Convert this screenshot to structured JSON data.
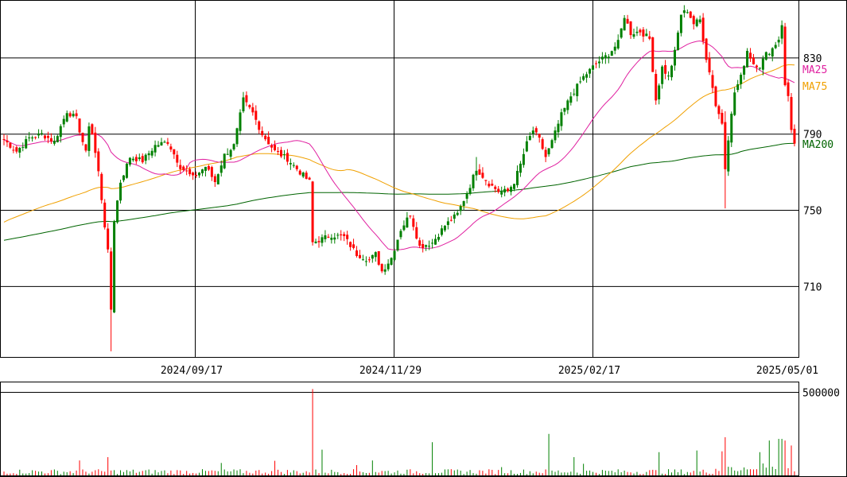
{
  "chart_data": {
    "type": "candlestick",
    "price_axis": {
      "ticks": [
        {
          "value": 830,
          "label": "830"
        },
        {
          "value": 790,
          "label": "790"
        },
        {
          "value": 750,
          "label": "750"
        },
        {
          "value": 710,
          "label": "710"
        }
      ],
      "range": [
        673,
        860
      ]
    },
    "volume_axis": {
      "ticks": [
        {
          "value": 500000,
          "label": "500000"
        }
      ],
      "max": 560000
    },
    "date_labels": [
      {
        "date": "2024/09/17",
        "label": "2024/09/17"
      },
      {
        "date": "2024/11/29",
        "label": "2024/11/29"
      },
      {
        "date": "2025/02/17",
        "label": "2025/02/17"
      },
      {
        "date": "2025/05/01",
        "label": "2025/05/01"
      }
    ],
    "legend": [
      {
        "key": "ma25",
        "label": "MA25",
        "color": "#e020a0",
        "value": 821
      },
      {
        "key": "ma75",
        "label": "MA75",
        "color": "#f0a000",
        "value": 812
      },
      {
        "key": "ma200",
        "label": "MA200",
        "color": "#006400",
        "value": 783
      }
    ],
    "colors": {
      "up": "#008000",
      "down": "#ff0000",
      "ma25": "#e020a0",
      "ma75": "#f0a000",
      "ma200": "#006400",
      "grid": "#000000"
    },
    "anchors": [
      [
        0,
        787
      ],
      [
        4,
        781
      ],
      [
        8,
        788
      ],
      [
        12,
        790
      ],
      [
        16,
        786
      ],
      [
        20,
        802
      ],
      [
        23,
        798
      ],
      [
        26,
        780
      ],
      [
        27,
        795
      ],
      [
        28,
        790
      ],
      [
        30,
        770
      ],
      [
        33,
        728
      ],
      [
        34,
        698
      ],
      [
        35,
        745
      ],
      [
        37,
        765
      ],
      [
        40,
        778
      ],
      [
        44,
        776
      ],
      [
        48,
        784
      ],
      [
        52,
        786
      ],
      [
        56,
        773
      ],
      [
        60,
        767
      ],
      [
        64,
        773
      ],
      [
        67,
        765
      ],
      [
        70,
        779
      ],
      [
        73,
        784
      ],
      [
        76,
        808
      ],
      [
        79,
        801
      ],
      [
        82,
        790
      ],
      [
        86,
        781
      ],
      [
        90,
        777
      ],
      [
        94,
        770
      ],
      [
        97,
        765
      ],
      [
        98,
        733
      ],
      [
        101,
        735
      ],
      [
        104,
        737
      ],
      [
        108,
        736
      ],
      [
        112,
        727
      ],
      [
        116,
        724
      ],
      [
        118,
        727
      ],
      [
        120,
        718
      ],
      [
        123,
        725
      ],
      [
        126,
        740
      ],
      [
        129,
        748
      ],
      [
        132,
        731
      ],
      [
        136,
        733
      ],
      [
        140,
        742
      ],
      [
        144,
        748
      ],
      [
        148,
        763
      ],
      [
        150,
        772
      ],
      [
        154,
        764
      ],
      [
        157,
        760
      ],
      [
        160,
        760
      ],
      [
        162,
        765
      ],
      [
        164,
        774
      ],
      [
        166,
        785
      ],
      [
        168,
        792
      ],
      [
        170,
        787
      ],
      [
        172,
        778
      ],
      [
        174,
        786
      ],
      [
        177,
        800
      ],
      [
        180,
        810
      ],
      [
        184,
        820
      ],
      [
        188,
        827
      ],
      [
        192,
        832
      ],
      [
        195,
        838
      ],
      [
        197,
        852
      ],
      [
        199,
        843
      ],
      [
        202,
        844
      ],
      [
        205,
        840
      ],
      [
        207,
        808
      ],
      [
        209,
        825
      ],
      [
        211,
        820
      ],
      [
        213,
        833
      ],
      [
        215,
        853
      ],
      [
        217,
        855
      ],
      [
        219,
        848
      ],
      [
        221,
        850
      ],
      [
        223,
        830
      ],
      [
        225,
        815
      ],
      [
        226,
        805
      ],
      [
        228,
        796
      ],
      [
        229,
        773
      ],
      [
        230,
        788
      ],
      [
        232,
        812
      ],
      [
        234,
        820
      ],
      [
        236,
        834
      ],
      [
        238,
        827
      ],
      [
        240,
        826
      ],
      [
        242,
        832
      ],
      [
        244,
        835
      ],
      [
        246,
        840
      ],
      [
        247,
        848
      ],
      [
        248,
        815
      ],
      [
        249,
        810
      ],
      [
        250,
        793
      ],
      [
        251,
        785
      ]
    ],
    "volume_spikes": [
      [
        24,
        90000
      ],
      [
        33,
        110000
      ],
      [
        69,
        75000
      ],
      [
        86,
        88000
      ],
      [
        98,
        520000
      ],
      [
        101,
        155000
      ],
      [
        112,
        62000
      ],
      [
        117,
        90000
      ],
      [
        136,
        200000
      ],
      [
        158,
        50000
      ],
      [
        173,
        250000
      ],
      [
        181,
        110000
      ],
      [
        184,
        70000
      ],
      [
        208,
        140000
      ],
      [
        220,
        150000
      ],
      [
        228,
        145000
      ],
      [
        229,
        230000
      ],
      [
        240,
        140000
      ],
      [
        243,
        210000
      ],
      [
        246,
        220000
      ],
      [
        247,
        220000
      ],
      [
        248,
        210000
      ],
      [
        250,
        180000
      ]
    ]
  }
}
